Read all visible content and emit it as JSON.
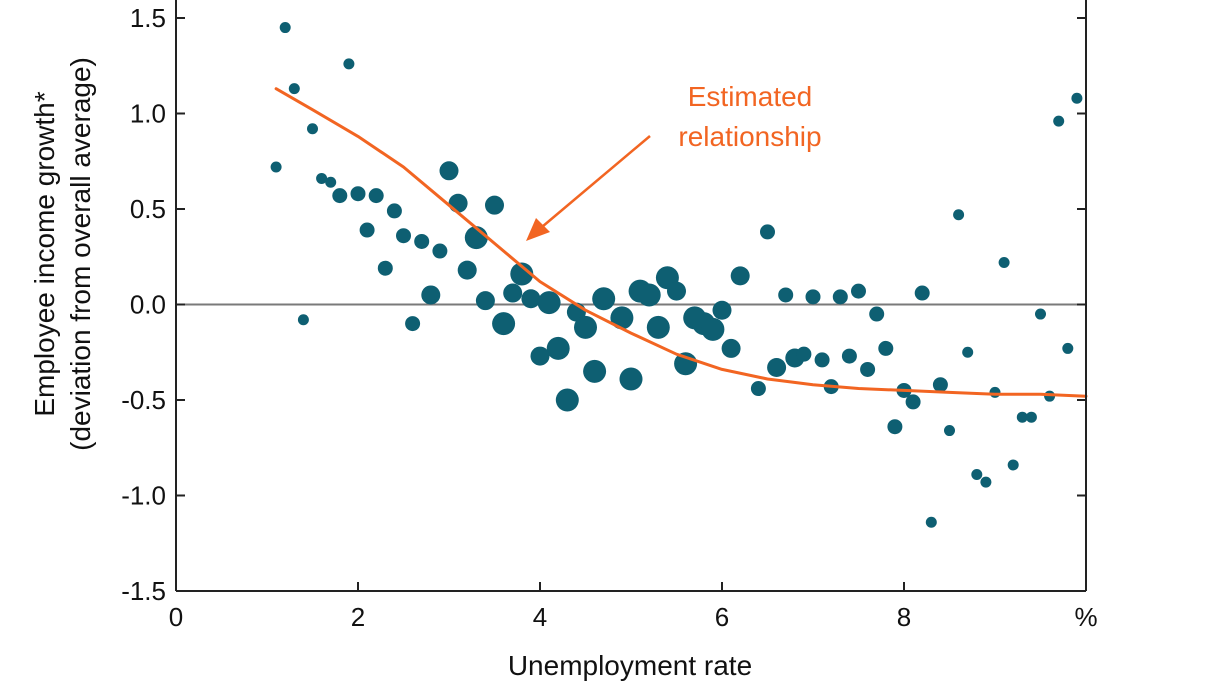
{
  "chart_data": {
    "type": "scatter",
    "title": "",
    "xlabel": "Unemployment rate",
    "x_unit": "%",
    "ylabel": "Employee income growth*",
    "ylabel_sub": "(deviation from overall average)",
    "xlim": [
      0,
      10
    ],
    "ylim": [
      -1.5,
      1.5
    ],
    "x_ticks": [
      "0",
      "2",
      "4",
      "6",
      "8"
    ],
    "x_tick_values": [
      0,
      2,
      4,
      6,
      8
    ],
    "y_ticks": [
      "1.5",
      "1.0",
      "0.5",
      "0.0",
      "-0.5",
      "-1.0",
      "-1.5"
    ],
    "y_tick_values": [
      1.5,
      1.0,
      0.5,
      0.0,
      -0.5,
      -1.0,
      -1.5
    ],
    "grid": false,
    "zero_line": true,
    "colors": {
      "points": "#0e5f72",
      "fit": "#f26522",
      "axis": "#222222",
      "zero_line": "#7a7a7a"
    },
    "annotation": {
      "lines": [
        "Estimated",
        "relationship"
      ],
      "color": "#f26522"
    },
    "fit_line": [
      [
        1.1,
        1.13
      ],
      [
        1.5,
        1.02
      ],
      [
        2.0,
        0.88
      ],
      [
        2.5,
        0.72
      ],
      [
        3.0,
        0.52
      ],
      [
        3.5,
        0.32
      ],
      [
        4.0,
        0.12
      ],
      [
        4.5,
        -0.03
      ],
      [
        5.0,
        -0.15
      ],
      [
        5.5,
        -0.26
      ],
      [
        6.0,
        -0.34
      ],
      [
        6.5,
        -0.39
      ],
      [
        7.0,
        -0.42
      ],
      [
        7.5,
        -0.44
      ],
      [
        8.0,
        -0.45
      ],
      [
        8.5,
        -0.46
      ],
      [
        9.0,
        -0.47
      ],
      [
        9.5,
        -0.47
      ],
      [
        10.0,
        -0.48
      ]
    ],
    "points": [
      {
        "x": 1.1,
        "y": 0.72,
        "s": 1
      },
      {
        "x": 1.2,
        "y": 1.45,
        "s": 1
      },
      {
        "x": 1.3,
        "y": 1.13,
        "s": 1
      },
      {
        "x": 1.4,
        "y": -0.08,
        "s": 1
      },
      {
        "x": 1.5,
        "y": 0.92,
        "s": 1
      },
      {
        "x": 1.6,
        "y": 0.66,
        "s": 1
      },
      {
        "x": 1.7,
        "y": 0.64,
        "s": 1
      },
      {
        "x": 1.8,
        "y": 0.57,
        "s": 2
      },
      {
        "x": 1.9,
        "y": 1.26,
        "s": 1
      },
      {
        "x": 2.0,
        "y": 0.58,
        "s": 2
      },
      {
        "x": 2.1,
        "y": 0.39,
        "s": 2
      },
      {
        "x": 2.2,
        "y": 0.57,
        "s": 2
      },
      {
        "x": 2.3,
        "y": 0.19,
        "s": 2
      },
      {
        "x": 2.4,
        "y": 0.49,
        "s": 2
      },
      {
        "x": 2.5,
        "y": 0.36,
        "s": 2
      },
      {
        "x": 2.6,
        "y": -0.1,
        "s": 2
      },
      {
        "x": 2.7,
        "y": 0.33,
        "s": 2
      },
      {
        "x": 2.8,
        "y": 0.05,
        "s": 3
      },
      {
        "x": 2.9,
        "y": 0.28,
        "s": 2
      },
      {
        "x": 3.0,
        "y": 0.7,
        "s": 3
      },
      {
        "x": 3.1,
        "y": 0.53,
        "s": 3
      },
      {
        "x": 3.2,
        "y": 0.18,
        "s": 3
      },
      {
        "x": 3.3,
        "y": 0.35,
        "s": 4
      },
      {
        "x": 3.4,
        "y": 0.02,
        "s": 3
      },
      {
        "x": 3.5,
        "y": 0.52,
        "s": 3
      },
      {
        "x": 3.6,
        "y": -0.1,
        "s": 4
      },
      {
        "x": 3.7,
        "y": 0.06,
        "s": 3
      },
      {
        "x": 3.8,
        "y": 0.16,
        "s": 4
      },
      {
        "x": 3.9,
        "y": 0.03,
        "s": 3
      },
      {
        "x": 4.0,
        "y": -0.27,
        "s": 3
      },
      {
        "x": 4.1,
        "y": 0.01,
        "s": 4
      },
      {
        "x": 4.2,
        "y": -0.23,
        "s": 4
      },
      {
        "x": 4.3,
        "y": -0.5,
        "s": 4
      },
      {
        "x": 4.4,
        "y": -0.04,
        "s": 3
      },
      {
        "x": 4.5,
        "y": -0.12,
        "s": 4
      },
      {
        "x": 4.6,
        "y": -0.35,
        "s": 4
      },
      {
        "x": 4.7,
        "y": 0.03,
        "s": 4
      },
      {
        "x": 4.9,
        "y": -0.07,
        "s": 4
      },
      {
        "x": 5.0,
        "y": -0.39,
        "s": 4
      },
      {
        "x": 5.1,
        "y": 0.07,
        "s": 4
      },
      {
        "x": 5.2,
        "y": 0.05,
        "s": 4
      },
      {
        "x": 5.3,
        "y": -0.12,
        "s": 4
      },
      {
        "x": 5.4,
        "y": 0.14,
        "s": 4
      },
      {
        "x": 5.5,
        "y": 0.07,
        "s": 3
      },
      {
        "x": 5.6,
        "y": -0.31,
        "s": 4
      },
      {
        "x": 5.7,
        "y": -0.07,
        "s": 4
      },
      {
        "x": 5.8,
        "y": -0.1,
        "s": 4
      },
      {
        "x": 5.9,
        "y": -0.13,
        "s": 4
      },
      {
        "x": 6.0,
        "y": -0.03,
        "s": 3
      },
      {
        "x": 6.1,
        "y": -0.23,
        "s": 3
      },
      {
        "x": 6.2,
        "y": 0.15,
        "s": 3
      },
      {
        "x": 6.4,
        "y": -0.44,
        "s": 2
      },
      {
        "x": 6.5,
        "y": 0.38,
        "s": 2
      },
      {
        "x": 6.6,
        "y": -0.33,
        "s": 3
      },
      {
        "x": 6.7,
        "y": 0.05,
        "s": 2
      },
      {
        "x": 6.8,
        "y": -0.28,
        "s": 3
      },
      {
        "x": 6.9,
        "y": -0.26,
        "s": 2
      },
      {
        "x": 7.0,
        "y": 0.04,
        "s": 2
      },
      {
        "x": 7.1,
        "y": -0.29,
        "s": 2
      },
      {
        "x": 7.2,
        "y": -0.43,
        "s": 2
      },
      {
        "x": 7.3,
        "y": 0.04,
        "s": 2
      },
      {
        "x": 7.4,
        "y": -0.27,
        "s": 2
      },
      {
        "x": 7.5,
        "y": 0.07,
        "s": 2
      },
      {
        "x": 7.6,
        "y": -0.34,
        "s": 2
      },
      {
        "x": 7.7,
        "y": -0.05,
        "s": 2
      },
      {
        "x": 7.8,
        "y": -0.23,
        "s": 2
      },
      {
        "x": 7.9,
        "y": -0.64,
        "s": 2
      },
      {
        "x": 8.0,
        "y": -0.45,
        "s": 2
      },
      {
        "x": 8.1,
        "y": -0.51,
        "s": 2
      },
      {
        "x": 8.2,
        "y": 0.06,
        "s": 2
      },
      {
        "x": 8.3,
        "y": -1.14,
        "s": 1
      },
      {
        "x": 8.4,
        "y": -0.42,
        "s": 2
      },
      {
        "x": 8.5,
        "y": -0.66,
        "s": 1
      },
      {
        "x": 8.6,
        "y": 0.47,
        "s": 1
      },
      {
        "x": 8.7,
        "y": -0.25,
        "s": 1
      },
      {
        "x": 8.8,
        "y": -0.89,
        "s": 1
      },
      {
        "x": 8.9,
        "y": -0.93,
        "s": 1
      },
      {
        "x": 9.0,
        "y": -0.46,
        "s": 1
      },
      {
        "x": 9.1,
        "y": 0.22,
        "s": 1
      },
      {
        "x": 9.2,
        "y": -0.84,
        "s": 1
      },
      {
        "x": 9.3,
        "y": -0.59,
        "s": 1
      },
      {
        "x": 9.4,
        "y": -0.59,
        "s": 1
      },
      {
        "x": 9.5,
        "y": -0.05,
        "s": 1
      },
      {
        "x": 9.6,
        "y": -0.48,
        "s": 1
      },
      {
        "x": 9.7,
        "y": 0.96,
        "s": 1
      },
      {
        "x": 9.8,
        "y": -0.23,
        "s": 1
      },
      {
        "x": 9.9,
        "y": 1.08,
        "s": 1
      }
    ]
  }
}
